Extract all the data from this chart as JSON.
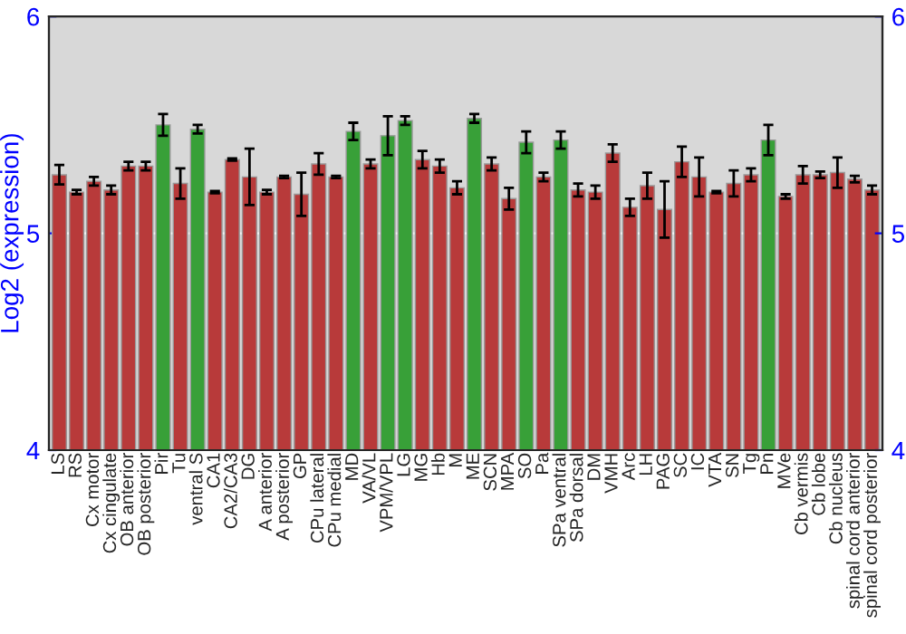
{
  "chart_data": {
    "type": "bar",
    "ylabel": "Log2 (expression)",
    "categories": [
      "LS",
      "RS",
      "Cx motor",
      "Cx cingulate",
      "OB anterior",
      "OB posterior",
      "Pir",
      "Tu",
      "ventral S",
      "CA1",
      "CA2/CA3",
      "DG",
      "A anterior",
      "A posterior",
      "GP",
      "CPu lateral",
      "CPu medial",
      "MD",
      "VA/VL",
      "VPM/VPL",
      "LG",
      "MG",
      "Hb",
      "M",
      "ME",
      "SCN",
      "MPA",
      "SO",
      "Pa",
      "SPa ventral",
      "SPa dorsal",
      "DM",
      "VMH",
      "Arc",
      "LH",
      "PAG",
      "SC",
      "IC",
      "VTA",
      "SN",
      "Tg",
      "Pn",
      "MVe",
      "Cb vermis",
      "Cb lobe",
      "Cb nucleus",
      "spinal cord anterior",
      "spinal cord posterior"
    ],
    "values": [
      5.27,
      5.19,
      5.24,
      5.2,
      5.31,
      5.31,
      5.5,
      5.23,
      5.48,
      5.19,
      5.34,
      5.26,
      5.19,
      5.26,
      5.18,
      5.32,
      5.26,
      5.47,
      5.32,
      5.45,
      5.52,
      5.34,
      5.31,
      5.21,
      5.53,
      5.32,
      5.16,
      5.42,
      5.26,
      5.43,
      5.2,
      5.19,
      5.37,
      5.12,
      5.22,
      5.11,
      5.33,
      5.26,
      5.19,
      5.23,
      5.27,
      5.43,
      5.17,
      5.27,
      5.27,
      5.28,
      5.25,
      5.2
    ],
    "errors": [
      0.045,
      0.01,
      0.02,
      0.02,
      0.02,
      0.02,
      0.05,
      0.07,
      0.02,
      0.005,
      0.005,
      0.13,
      0.01,
      0.005,
      0.1,
      0.05,
      0.005,
      0.04,
      0.02,
      0.09,
      0.02,
      0.04,
      0.03,
      0.03,
      0.02,
      0.03,
      0.05,
      0.05,
      0.02,
      0.04,
      0.03,
      0.03,
      0.04,
      0.04,
      0.06,
      0.13,
      0.07,
      0.09,
      0.005,
      0.06,
      0.03,
      0.07,
      0.01,
      0.04,
      0.015,
      0.07,
      0.015,
      0.02
    ],
    "colors": [
      "#b83a3a",
      "#b83a3a",
      "#b83a3a",
      "#b83a3a",
      "#b83a3a",
      "#b83a3a",
      "#38a038",
      "#b83a3a",
      "#38a038",
      "#b83a3a",
      "#b83a3a",
      "#b83a3a",
      "#b83a3a",
      "#b83a3a",
      "#b83a3a",
      "#b83a3a",
      "#b83a3a",
      "#38a038",
      "#b83a3a",
      "#38a038",
      "#38a038",
      "#b83a3a",
      "#b83a3a",
      "#b83a3a",
      "#38a038",
      "#b83a3a",
      "#b83a3a",
      "#38a038",
      "#b83a3a",
      "#38a038",
      "#b83a3a",
      "#b83a3a",
      "#b83a3a",
      "#b83a3a",
      "#b83a3a",
      "#b83a3a",
      "#b83a3a",
      "#b83a3a",
      "#b83a3a",
      "#b83a3a",
      "#b83a3a",
      "#38a038",
      "#b83a3a",
      "#b83a3a",
      "#b83a3a",
      "#b83a3a",
      "#b83a3a",
      "#b83a3a"
    ],
    "ylim": [
      4,
      6
    ],
    "yticks": [
      4,
      5,
      6
    ],
    "y2lim": [
      4,
      6
    ],
    "y2ticks": [
      4,
      5,
      6
    ],
    "grid": "y"
  }
}
